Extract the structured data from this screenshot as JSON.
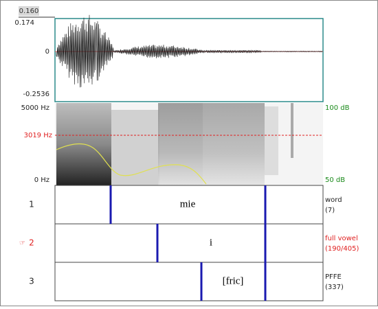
{
  "selection_time": "0.160",
  "waveform": {
    "max_label": "0.174",
    "zero_label": "0",
    "min_label": "-0.2536"
  },
  "spectrogram": {
    "top_label": "5000 Hz",
    "cursor_label": "3019 Hz",
    "bottom_label": "0 Hz",
    "db_top_label": "100 dB",
    "db_bottom_label": "50 dB"
  },
  "tiers": [
    {
      "number": "1",
      "interval_text": "mie",
      "name": "word",
      "count": "(7)"
    },
    {
      "number": "2",
      "interval_text": "i",
      "name": "full vowel",
      "count": "(190/405)"
    },
    {
      "number": "3",
      "interval_text": "[fric]",
      "name": "PFFE",
      "count": "(337)"
    }
  ]
}
